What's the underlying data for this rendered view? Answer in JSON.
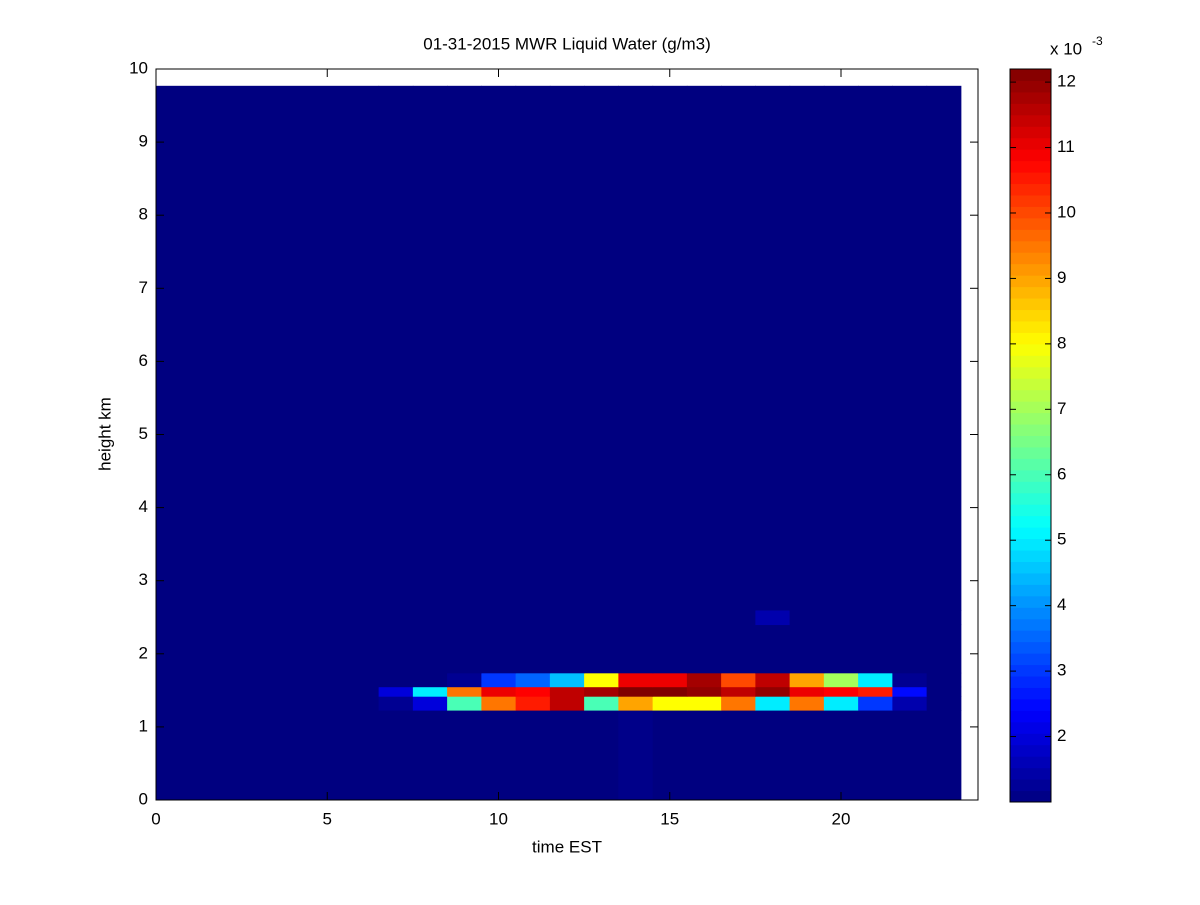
{
  "chart_data": {
    "type": "heatmap",
    "title": "01-31-2015 MWR Liquid Water (g/m3)",
    "x_label": "time EST",
    "y_label": "height km",
    "xlim": [
      0,
      24
    ],
    "xticks": [
      0,
      5,
      10,
      15,
      20
    ],
    "ylim": [
      0,
      10
    ],
    "yticks": [
      0,
      1,
      2,
      3,
      4,
      5,
      6,
      7,
      8,
      9,
      10
    ],
    "x_edges": [
      0,
      6.5,
      7.5,
      8.5,
      9.5,
      10.5,
      11.5,
      12.5,
      13.5,
      14.5,
      15.5,
      16.5,
      17.5,
      18.5,
      19.5,
      20.5,
      21.5,
      22.5,
      23.5
    ],
    "y_edges": [
      0,
      1.23,
      1.42,
      1.55,
      1.74,
      2.4,
      2.6,
      9.77
    ],
    "z": [
      [
        1.0,
        1.0,
        1.0,
        1.0,
        1.0,
        1.0,
        1.0,
        1.0,
        1.1,
        1.0,
        1.0,
        1.0,
        1.0,
        1.0,
        1.0,
        1.0,
        1.0,
        1.0
      ],
      [
        1.0,
        1.2,
        2,
        6,
        9.5,
        10.5,
        11.5,
        6,
        9,
        8,
        8,
        9.5,
        5,
        9.5,
        5,
        3,
        1.5,
        1.0
      ],
      [
        1.0,
        2,
        5,
        9.5,
        11,
        10.8,
        11.5,
        11.8,
        12.2,
        12.2,
        12,
        11.5,
        12,
        11,
        10.8,
        10.5,
        2.5,
        1.0
      ],
      [
        1.0,
        1.0,
        1.0,
        1.2,
        3,
        3.5,
        4.5,
        8,
        11,
        11,
        11.8,
        10,
        11.5,
        9,
        7,
        5,
        1.2,
        1.0
      ],
      [
        1.0,
        1.0,
        1.0,
        1.0,
        1.0,
        1.0,
        1.0,
        1.0,
        1.0,
        1.0,
        1.0,
        1.0,
        1.0,
        1.0,
        1.0,
        1.0,
        1.0,
        1.0
      ],
      [
        1.0,
        1.0,
        1.0,
        1.0,
        1.0,
        1.0,
        1.0,
        1.0,
        1.0,
        1.0,
        1.0,
        1.0,
        1.5,
        1.0,
        1.0,
        1.0,
        1.0,
        1.0
      ],
      [
        1.0,
        1.0,
        1.0,
        1.0,
        1.0,
        1.0,
        1.0,
        1.0,
        1.0,
        1.0,
        1.0,
        1.0,
        1.0,
        1.0,
        1.0,
        1.0,
        1.0,
        1.0
      ]
    ],
    "colormap": "jet",
    "clim": [
      1.0,
      12.2
    ],
    "colorbar_ticks": [
      2,
      3,
      4,
      5,
      6,
      7,
      8,
      9,
      10,
      11,
      12
    ],
    "colorbar_scale": "x 10",
    "colorbar_exponent": "-3"
  }
}
